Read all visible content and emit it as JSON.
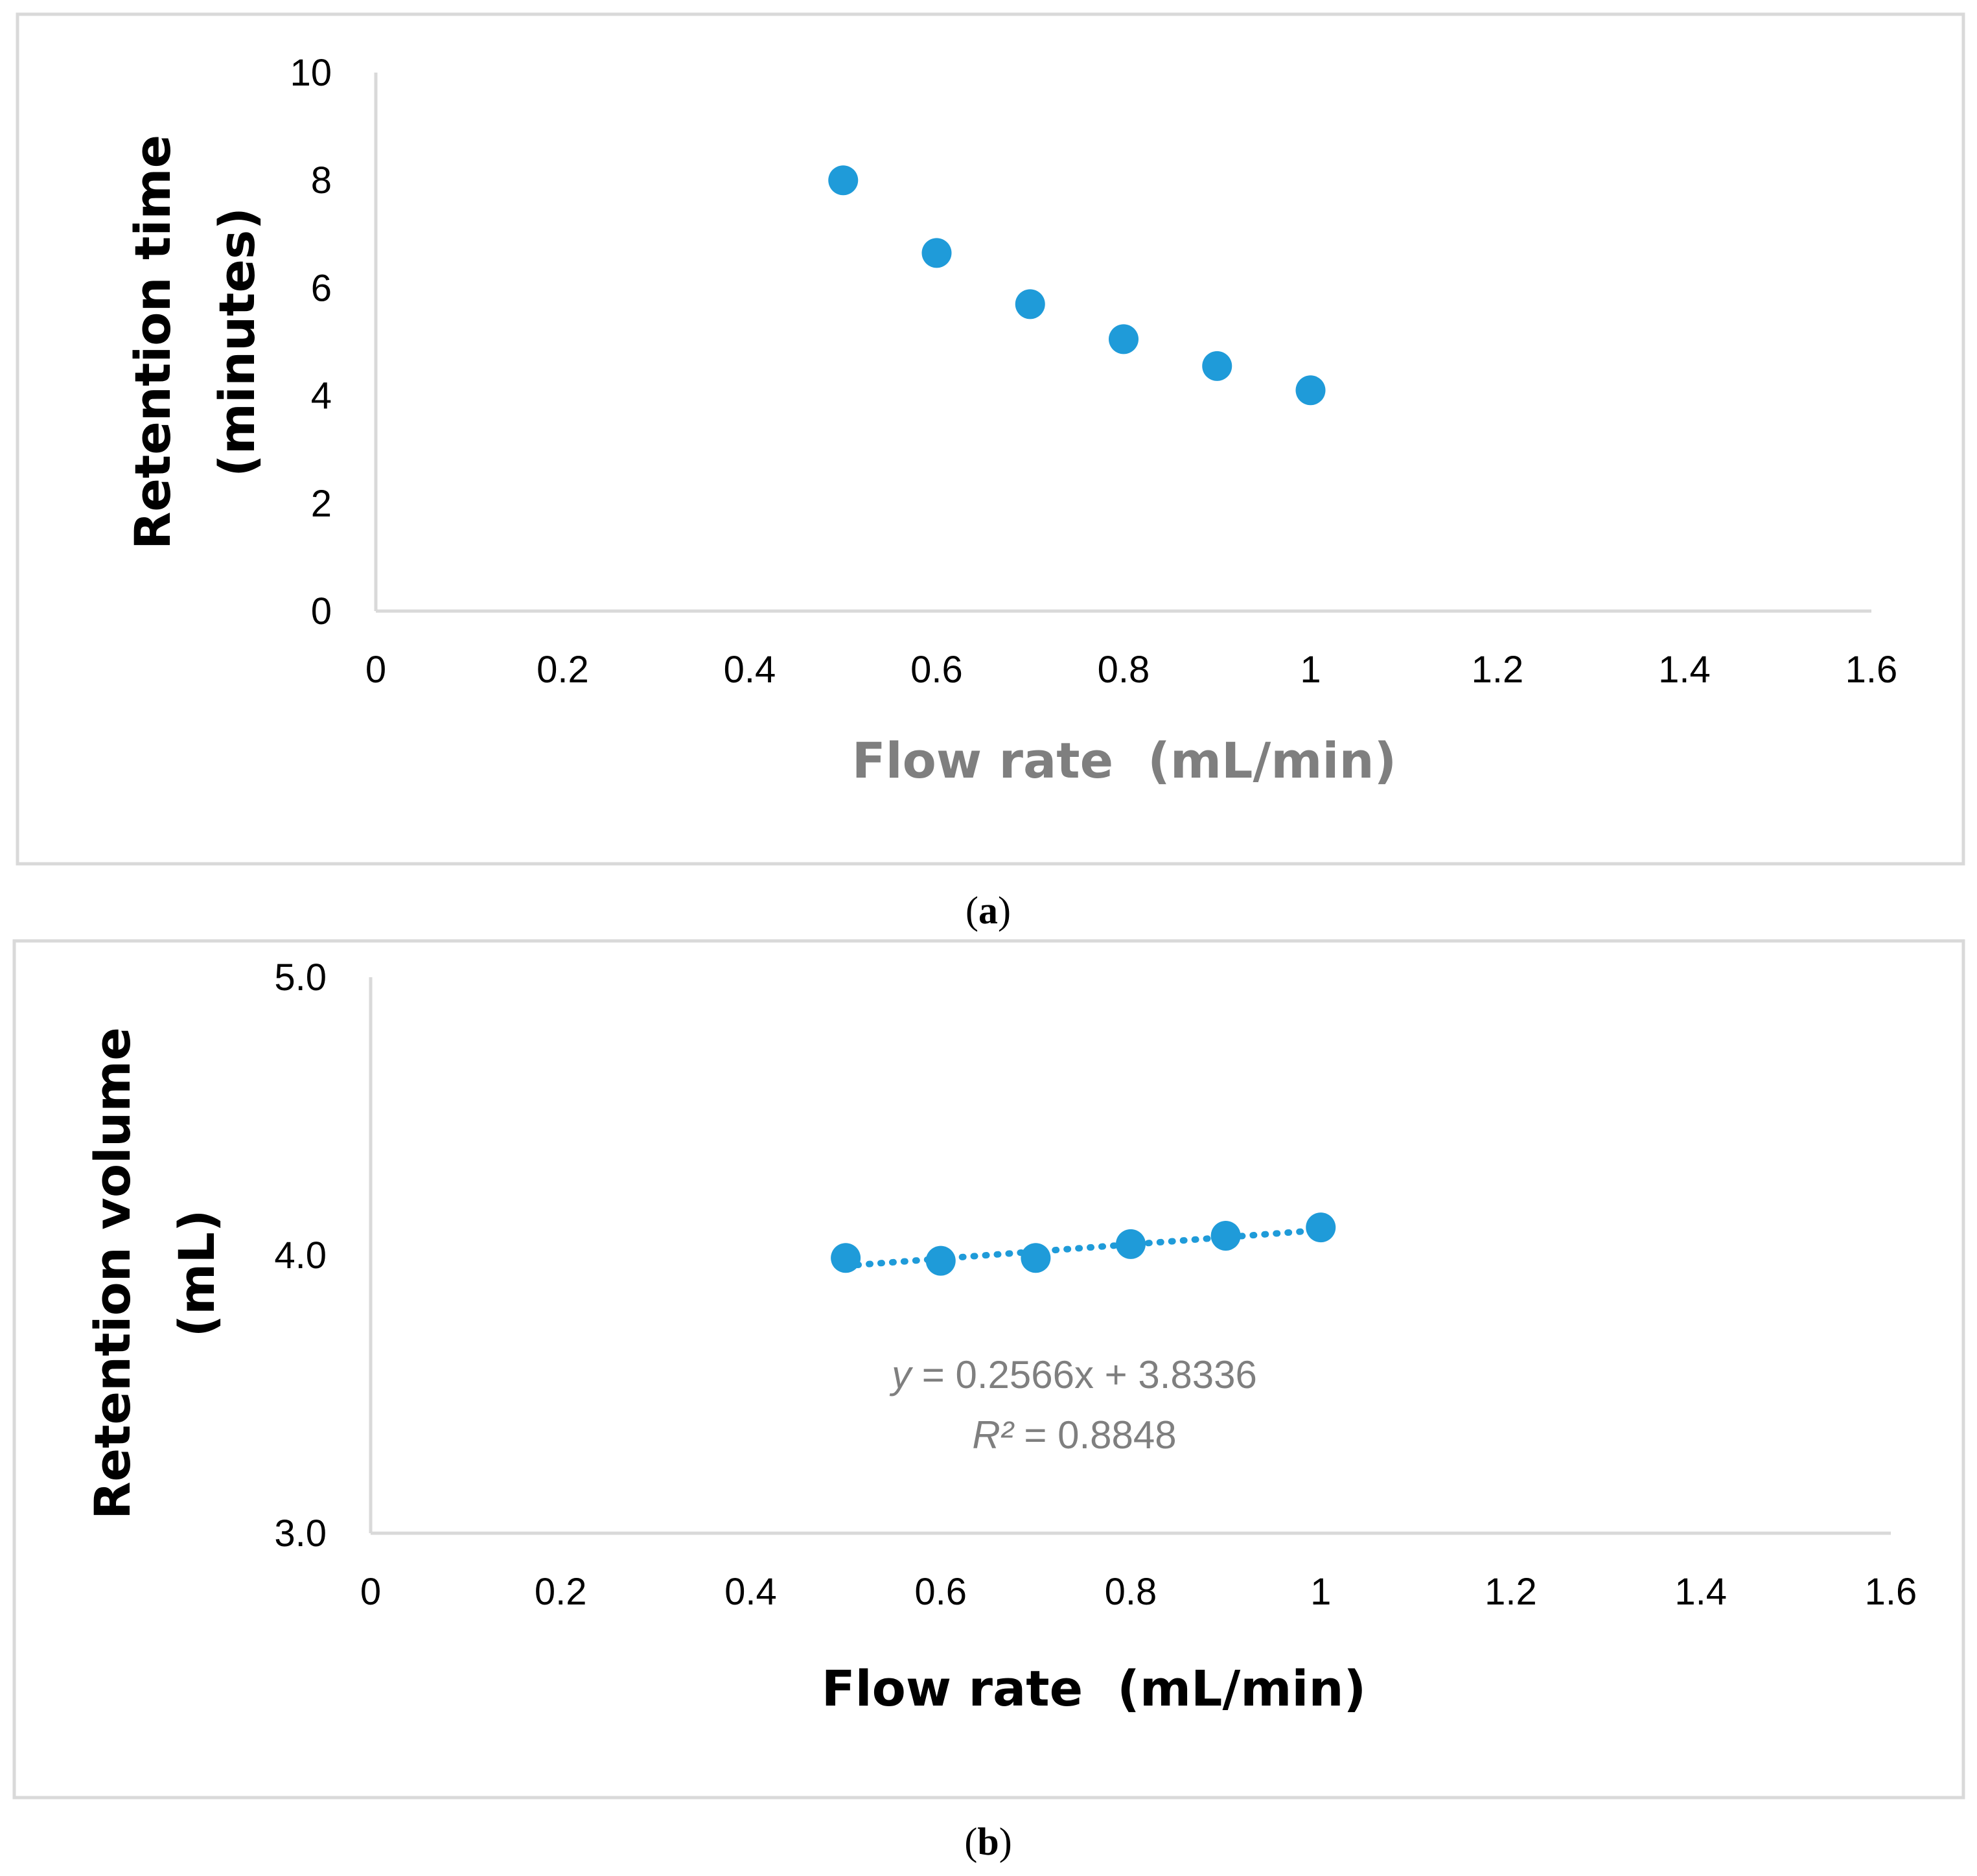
{
  "chart_data": [
    {
      "type": "scatter",
      "caption": "a",
      "title": "",
      "xlabel": "Flow rate  (mL/min)",
      "ylabel": "Retention time (minutes)",
      "ylabel_lines": [
        "Retention time",
        "(minutes)"
      ],
      "xlim": [
        0,
        1.6
      ],
      "ylim": [
        0,
        10
      ],
      "xticks": [
        0,
        0.2,
        0.4,
        0.6,
        0.8,
        1,
        1.2,
        1.4,
        1.6
      ],
      "xtick_labels": [
        "0",
        "0.2",
        "0.4",
        "0.6",
        "0.8",
        "1",
        "1.2",
        "1.4",
        "1.6"
      ],
      "yticks": [
        0,
        2,
        4,
        6,
        8,
        10
      ],
      "ytick_labels": [
        "0",
        "2",
        "4",
        "6",
        "8",
        "10"
      ],
      "grid": false,
      "marker_color": "#1f9bd9",
      "series": [
        {
          "name": "Retention time",
          "x": [
            0.5,
            0.6,
            0.7,
            0.8,
            0.9,
            1.0
          ],
          "y": [
            8.0,
            6.65,
            5.7,
            5.05,
            4.55,
            4.1
          ]
        }
      ]
    },
    {
      "type": "scatter",
      "caption": "b",
      "title": "",
      "xlabel": "Flow rate  (mL/min)",
      "ylabel": "Retention volume (mL)",
      "ylabel_lines": [
        "Retention volume",
        "(mL)"
      ],
      "xlim": [
        0,
        1.6
      ],
      "ylim": [
        3.0,
        5.0
      ],
      "xticks": [
        0,
        0.2,
        0.4,
        0.6,
        0.8,
        1,
        1.2,
        1.4,
        1.6
      ],
      "xtick_labels": [
        "0",
        "0.2",
        "0.4",
        "0.6",
        "0.8",
        "1",
        "1.2",
        "1.4",
        "1.6"
      ],
      "yticks": [
        3.0,
        4.0,
        5.0
      ],
      "ytick_labels": [
        "3.0",
        "4.0",
        "5.0"
      ],
      "grid": false,
      "marker_color": "#1f9bd9",
      "series": [
        {
          "name": "Retention volume",
          "x": [
            0.5,
            0.6,
            0.7,
            0.8,
            0.9,
            1.0
          ],
          "y": [
            3.99,
            3.98,
            3.99,
            4.04,
            4.07,
            4.1
          ]
        }
      ],
      "trendline": {
        "type": "linear",
        "slope": 0.2566,
        "intercept": 3.8336,
        "x_range": [
          0.5,
          1.0
        ],
        "style": "dotted"
      },
      "annotation": {
        "equation_var": "y",
        "equation_rest": " = 0.2566x + 3.8336",
        "r2_var": "R²",
        "r2_rest": " = 0.8848"
      }
    }
  ]
}
